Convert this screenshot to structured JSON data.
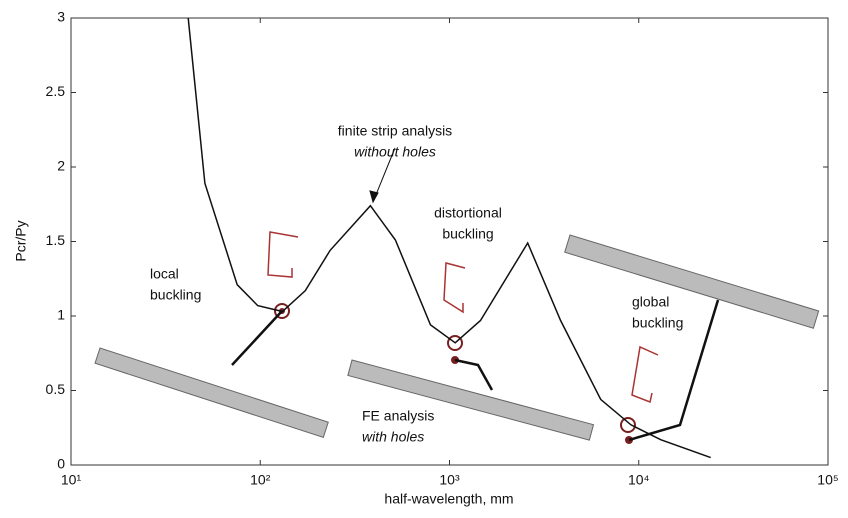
{
  "chart_data": {
    "type": "line",
    "xlabel": "half-wavelength, mm",
    "ylabel": "Pcr/Py",
    "xlog": true,
    "xlim": [
      10,
      100000
    ],
    "xticks": [
      {
        "value": 10,
        "label": "10¹"
      },
      {
        "value": 100,
        "label": "10²"
      },
      {
        "value": 1000,
        "label": "10³"
      },
      {
        "value": 10000,
        "label": "10⁴"
      },
      {
        "value": 100000,
        "label": "10⁵"
      }
    ],
    "ylim": [
      0,
      3
    ],
    "yticks": [
      0,
      0.5,
      1,
      1.5,
      2,
      2.5,
      3
    ],
    "x": [
      41.6,
      51,
      75.5,
      97,
      131,
      173,
      234,
      382,
      518,
      794,
      1072,
      1459,
      2589,
      3864,
      6295,
      9085,
      13060,
      24000
    ],
    "series": [
      {
        "color": "#111111",
        "values": [
          3,
          1.89,
          1.21,
          1.07,
          1.03,
          1.17,
          1.44,
          1.74,
          1.51,
          0.94,
          0.82,
          0.97,
          1.49,
          0.97,
          0.44,
          0.27,
          0.17,
          0.05
        ]
      }
    ],
    "annotations": [
      {
        "lines": [
          "finite strip analysis",
          "without holes"
        ]
      },
      {
        "lines": [
          "distortional",
          "buckling"
        ]
      },
      {
        "lines": [
          "local",
          "buckling"
        ]
      },
      {
        "lines": [
          "global",
          "buckling"
        ]
      },
      {
        "lines": [
          "FE analysis",
          "with holes"
        ]
      }
    ]
  }
}
